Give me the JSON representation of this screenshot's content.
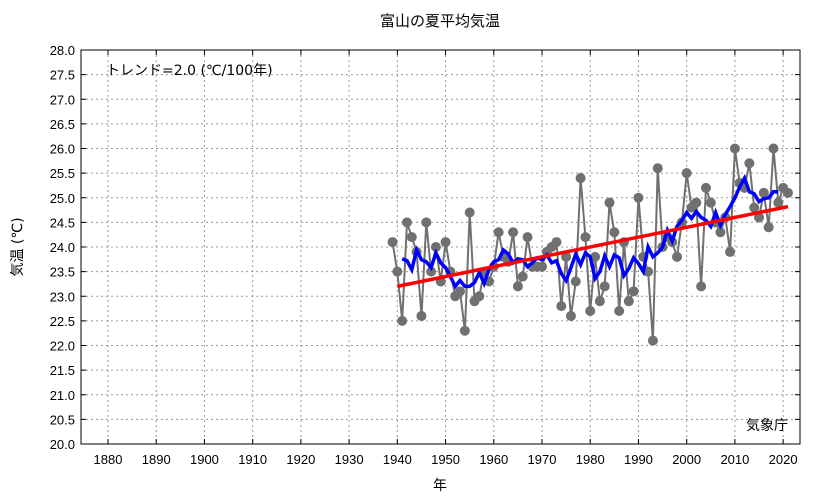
{
  "chart_data": {
    "type": "line",
    "title": "富山の夏平均気温",
    "xlabel": "年",
    "ylabel": "気温 (℃)",
    "annotation": "トレンド=2.0 (℃/100年)",
    "credit": "気象庁",
    "xlim": [
      1874.4,
      2023.5
    ],
    "ylim": [
      20.0,
      28.0
    ],
    "xticks": [
      1880,
      1890,
      1900,
      1910,
      1920,
      1930,
      1940,
      1950,
      1960,
      1970,
      1980,
      1990,
      2000,
      2010,
      2020
    ],
    "yticks": [
      "20.0",
      "20.5",
      "21.0",
      "21.5",
      "22.0",
      "22.5",
      "23.0",
      "23.5",
      "24.0",
      "24.5",
      "25.0",
      "25.5",
      "26.0",
      "26.5",
      "27.0",
      "27.5",
      "28.0"
    ],
    "grid": true,
    "colors": {
      "annual": "#707070",
      "moving_average": "#0000ff",
      "trend": "#ff0000"
    },
    "x": [
      1939,
      1940,
      1941,
      1942,
      1943,
      1944,
      1945,
      1946,
      1947,
      1948,
      1949,
      1950,
      1951,
      1952,
      1953,
      1954,
      1955,
      1956,
      1957,
      1958,
      1959,
      1960,
      1961,
      1962,
      1963,
      1964,
      1965,
      1966,
      1967,
      1968,
      1969,
      1970,
      1971,
      1972,
      1973,
      1974,
      1975,
      1976,
      1977,
      1978,
      1979,
      1980,
      1981,
      1982,
      1983,
      1984,
      1985,
      1986,
      1987,
      1988,
      1989,
      1990,
      1991,
      1992,
      1993,
      1994,
      1995,
      1996,
      1997,
      1998,
      1999,
      2000,
      2001,
      2002,
      2003,
      2004,
      2005,
      2006,
      2007,
      2008,
      2009,
      2010,
      2011,
      2012,
      2013,
      2014,
      2015,
      2016,
      2017,
      2018,
      2019,
      2020,
      2021
    ],
    "values": [
      24.1,
      23.5,
      22.5,
      24.5,
      24.2,
      23.9,
      22.6,
      24.5,
      23.5,
      24.0,
      23.3,
      24.1,
      23.5,
      23.0,
      23.1,
      22.3,
      24.7,
      22.9,
      23.0,
      23.5,
      23.3,
      23.6,
      24.3,
      23.8,
      23.7,
      24.3,
      23.2,
      23.4,
      24.2,
      23.6,
      23.6,
      23.6,
      23.9,
      24.0,
      24.1,
      22.8,
      23.8,
      22.6,
      23.3,
      25.4,
      24.2,
      22.7,
      23.8,
      22.9,
      23.2,
      24.9,
      24.3,
      22.7,
      24.1,
      22.9,
      23.1,
      25.0,
      23.8,
      23.5,
      22.1,
      25.6,
      24.0,
      24.2,
      24.1,
      23.8,
      24.5,
      25.5,
      24.8,
      24.9,
      23.2,
      25.2,
      24.9,
      24.5,
      24.3,
      24.6,
      23.9,
      26.0,
      25.3,
      25.2,
      25.7,
      24.8,
      24.6,
      25.1,
      24.4,
      26.0,
      24.9,
      25.2,
      25.1
    ],
    "moving_average_window": 5,
    "trend": {
      "x": [
        1940,
        2021
      ],
      "y": [
        23.2,
        24.82
      ]
    }
  }
}
